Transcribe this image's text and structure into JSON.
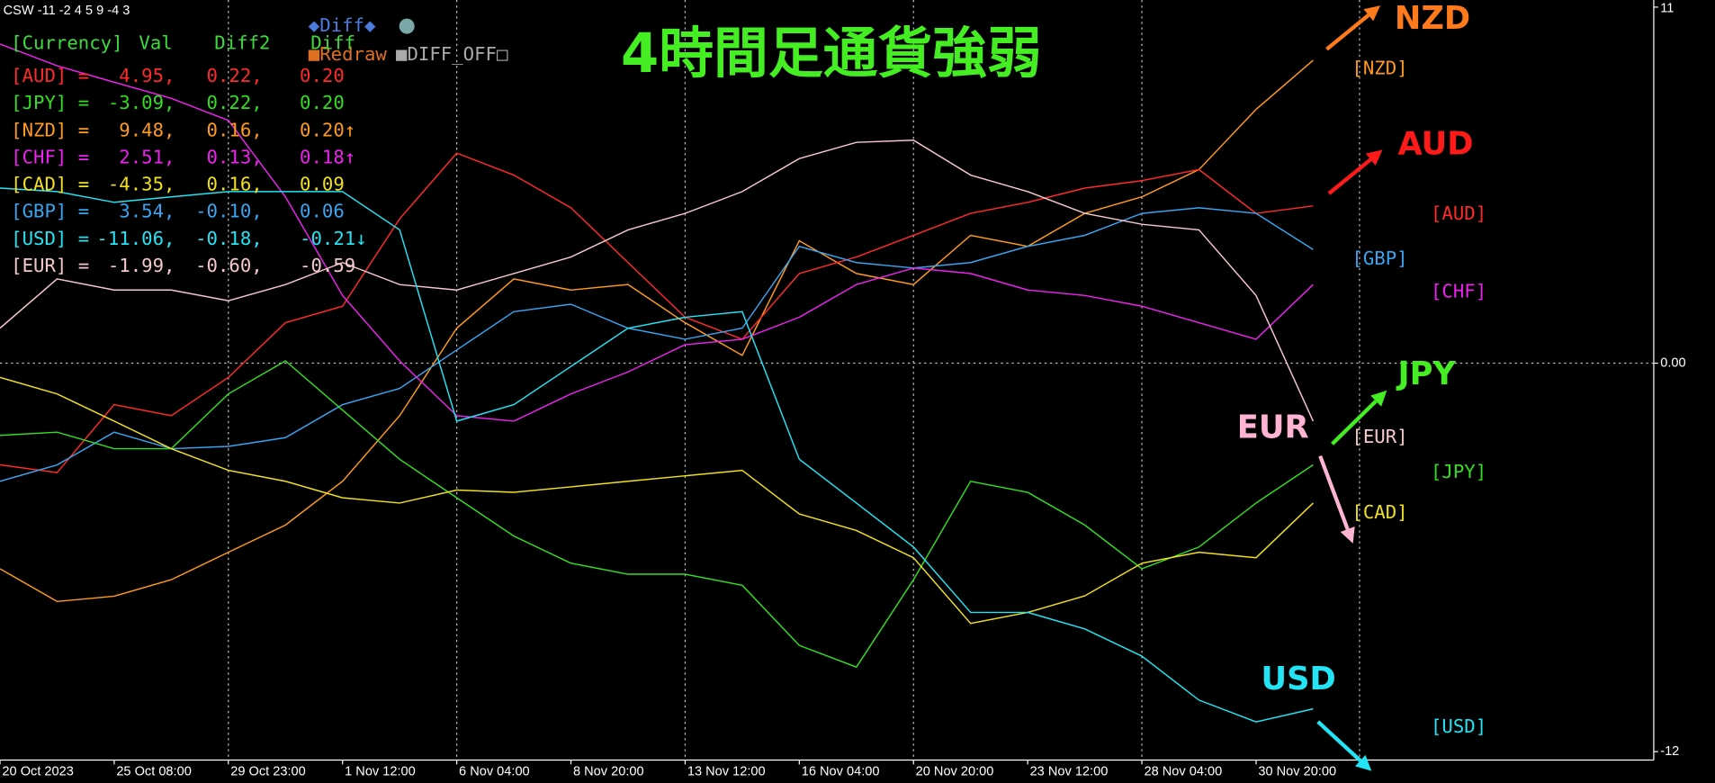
{
  "header": "CSW -11 -2 4 5 9 -4 3",
  "controls": [
    "◆Diff◆",
    "■Redraw",
    "■DIFF_OFF□"
  ],
  "panel": {
    "columns": [
      "[Currency]",
      "Val",
      "Diff2",
      "Diff"
    ],
    "header_color": "#3cdc3c",
    "rows": [
      {
        "color": "#ff2a2a",
        "cells": [
          "[AUD] =",
          "4.95,",
          "0.22,",
          "0.20"
        ]
      },
      {
        "color": "#33dd22",
        "cells": [
          "[JPY] =",
          "-3.09,",
          "0.22,",
          "0.20"
        ]
      },
      {
        "color": "#ff9a1f",
        "cells": [
          "[NZD] =",
          "9.48,",
          "0.16,",
          "0.20↑"
        ]
      },
      {
        "color": "#ee22ee",
        "cells": [
          "[CHF] =",
          "2.51,",
          "0.13,",
          "0.18↑"
        ]
      },
      {
        "color": "#f0e020",
        "cells": [
          "[CAD] =",
          "-4.35,",
          "0.16,",
          "0.09"
        ]
      },
      {
        "color": "#3aa4f0",
        "cells": [
          "[GBP] =",
          "3.54,",
          "-0.10,",
          "0.06"
        ]
      },
      {
        "color": "#22e4f4",
        "cells": [
          "[USD] =",
          "-11.06,",
          "-0.18,",
          "-0.21↓"
        ]
      },
      {
        "color": "#f4c8cc",
        "cells": [
          "[EUR] =",
          "-1.99,",
          "-0.60,",
          "-0.59"
        ]
      }
    ]
  },
  "chart_data": {
    "type": "line",
    "title": "4時間足通貨強弱",
    "title_color": "#44ee22",
    "categories": [
      "20 Oct 2023",
      null,
      "25 Oct 08:00",
      null,
      "29 Oct 23:00",
      null,
      "1 Nov 12:00",
      null,
      "6 Nov 04:00",
      null,
      "8 Nov 20:00",
      null,
      "13 Nov 12:00",
      null,
      "16 Nov 04:00",
      null,
      "20 Nov 20:00",
      null,
      "23 Nov 12:00",
      null,
      "28 Nov 04:00",
      null,
      "30 Nov 20:00",
      null
    ],
    "ylim": [
      -12.26,
      11.22
    ],
    "yticks": [
      -12,
      {
        "value": 0,
        "label": "0.00"
      },
      11
    ],
    "grid": true,
    "series": [
      {
        "name": "[NZD]",
        "color": "#ff9a1f",
        "values": [
          -6.35,
          -7.36,
          -7.2,
          -6.69,
          -5.84,
          -5.0,
          -3.65,
          -1.62,
          1.08,
          2.6,
          2.26,
          2.43,
          1.25,
          0.24,
          3.78,
          2.77,
          2.43,
          3.95,
          3.61,
          4.63,
          5.14,
          5.98,
          7.84,
          9.36
        ]
      },
      {
        "name": "[AUD]",
        "color": "#ff2a2a",
        "values": [
          -3.14,
          -3.38,
          -1.28,
          -1.62,
          -0.44,
          1.25,
          1.76,
          4.46,
          6.49,
          5.81,
          4.8,
          3.11,
          1.42,
          0.74,
          2.77,
          3.28,
          3.95,
          4.63,
          4.97,
          5.41,
          5.64,
          5.98,
          4.63,
          4.86
        ]
      },
      {
        "name": "[GBP]",
        "color": "#3aa4f0",
        "values": [
          -3.65,
          -3.14,
          -2.13,
          -2.64,
          -2.57,
          -2.3,
          -1.28,
          -0.78,
          0.41,
          1.59,
          1.82,
          1.08,
          0.74,
          1.08,
          3.61,
          3.11,
          2.94,
          3.11,
          3.61,
          3.95,
          4.63,
          4.8,
          4.63,
          3.51
        ]
      },
      {
        "name": "[CHF]",
        "color": "#ee22ee",
        "values": [
          9.86,
          9.19,
          8.68,
          8.18,
          7.5,
          5.14,
          2.09,
          0.07,
          -1.62,
          -1.79,
          -0.95,
          -0.27,
          0.57,
          0.74,
          1.42,
          2.43,
          2.94,
          2.77,
          2.26,
          2.09,
          1.76,
          1.25,
          0.74,
          2.43
        ]
      },
      {
        "name": "[EUR]",
        "color": "#f4c8cc",
        "values": [
          1.08,
          2.6,
          2.26,
          2.26,
          1.93,
          2.43,
          3.11,
          2.43,
          2.26,
          2.77,
          3.28,
          4.12,
          4.63,
          5.3,
          6.32,
          6.82,
          6.89,
          5.81,
          5.3,
          4.63,
          4.29,
          4.12,
          2.09,
          -1.79
        ]
      },
      {
        "name": "[JPY]",
        "color": "#33dd22",
        "values": [
          -2.23,
          -2.13,
          -2.64,
          -2.64,
          -0.95,
          0.07,
          -1.45,
          -2.97,
          -4.16,
          -5.34,
          -6.18,
          -6.52,
          -6.52,
          -6.86,
          -8.72,
          -9.39,
          -6.69,
          -3.65,
          -3.99,
          -5.0,
          -6.35,
          -5.68,
          -4.32,
          -3.14
        ]
      },
      {
        "name": "[CAD]",
        "color": "#f0e020",
        "values": [
          -0.44,
          -0.95,
          -1.79,
          -2.64,
          -3.31,
          -3.65,
          -4.16,
          -4.32,
          -3.92,
          -3.99,
          -3.82,
          -3.65,
          -3.48,
          -3.31,
          -4.66,
          -5.17,
          -6.01,
          -8.04,
          -7.7,
          -7.19,
          -6.18,
          -5.84,
          -6.01,
          -4.32
        ]
      },
      {
        "name": "[USD]",
        "color": "#22e4f4",
        "values": [
          5.41,
          5.3,
          4.97,
          5.14,
          5.3,
          5.3,
          5.3,
          4.12,
          -1.79,
          -1.28,
          -0.1,
          1.08,
          1.42,
          1.59,
          -2.97,
          -4.32,
          -5.68,
          -7.7,
          -7.7,
          -8.21,
          -9.05,
          -10.41,
          -11.08,
          -10.68
        ]
      }
    ],
    "annotations": [
      {
        "text": "NZD",
        "color": "#ff7a1a"
      },
      {
        "text": "AUD",
        "color": "#ff1a1a"
      },
      {
        "text": "JPY",
        "color": "#44ee22"
      },
      {
        "text": "EUR",
        "color": "#ffb4d4"
      },
      {
        "text": "USD",
        "color": "#22e4f4"
      }
    ]
  }
}
